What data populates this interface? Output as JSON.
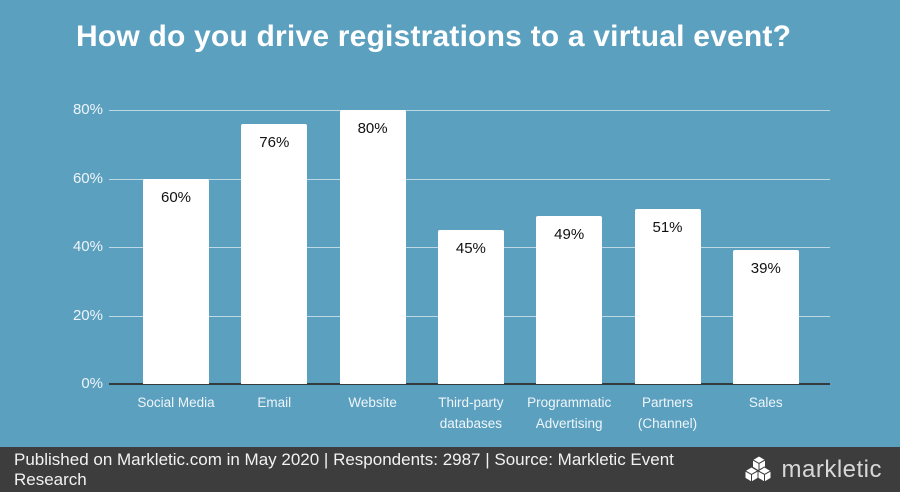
{
  "title": "How do you drive registrations to a virtual event?",
  "chart_data": {
    "type": "bar",
    "categories": [
      "Social Media",
      "Email",
      "Website",
      "Third-party\ndatabases",
      "Programmatic\nAdvertising",
      "Partners\n(Channel)",
      "Sales"
    ],
    "values": [
      60,
      76,
      80,
      45,
      49,
      51,
      39
    ],
    "bar_labels": [
      "60%",
      "76%",
      "80%",
      "45%",
      "49%",
      "51%",
      "39%"
    ],
    "title": "How do you drive registrations to a virtual event?",
    "xlabel": "",
    "ylabel": "",
    "y_ticks": [
      0,
      20,
      40,
      60,
      80
    ],
    "y_tick_labels": [
      "0%",
      "20%",
      "40%",
      "60%",
      "80%"
    ],
    "ylim": [
      0,
      87
    ],
    "grid": "horizontal",
    "legend": "none",
    "data_label_position": "inside-top"
  },
  "colors": {
    "background": "#5ca0c0",
    "bar": "#ffffff",
    "bar_label": "#111111",
    "tick_label": "#eef5f9",
    "gridline": "rgba(255,255,255,0.6)",
    "axis_line": "#333b3f",
    "footer_background": "#3d3d3d",
    "title_text": "#ffffff"
  },
  "footer": {
    "text": "Published on Markletic.com in May 2020 | Respondents: 2987 | Source: Markletic Event Research",
    "brand": "markletic",
    "logo": "cubes-icon"
  }
}
